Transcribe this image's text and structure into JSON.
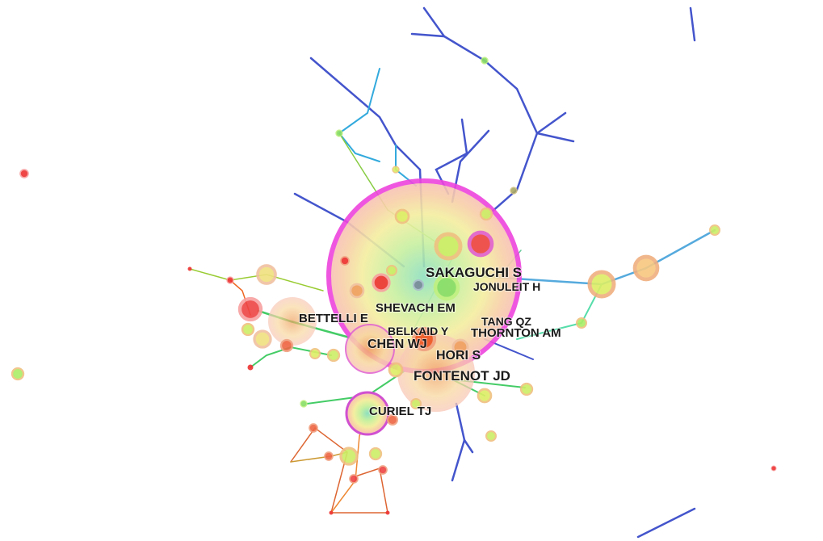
{
  "nodes": [
    {
      "label": "SAKAGUCHI S"
    },
    {
      "label": "JONULEIT H"
    },
    {
      "label": "SHEVACH EM"
    },
    {
      "label": "BETTELLI E"
    },
    {
      "label": "TANG QZ"
    },
    {
      "label": "BELKAID Y"
    },
    {
      "label": "THORNTON AM"
    },
    {
      "label": "CHEN WJ"
    },
    {
      "label": "HORI S"
    },
    {
      "label": "FONTENOT JD"
    },
    {
      "label": "CURIEL TJ"
    }
  ]
}
